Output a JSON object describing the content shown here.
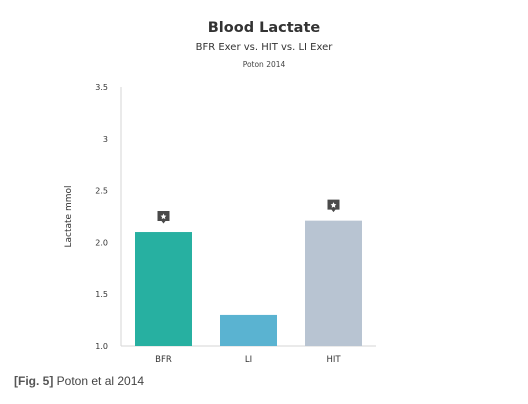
{
  "chart_data": {
    "type": "bar",
    "title": "Blood Lactate",
    "subtitle": "BFR Exer vs. HIT vs. LI Exer",
    "source": "Poton 2014",
    "categories": [
      "BFR",
      "LI",
      "HIT"
    ],
    "values": [
      2.1,
      1.3,
      2.21
    ],
    "ylabel": "Lactate mmol",
    "xlabel": "",
    "ylim": [
      1.0,
      3.5
    ],
    "yticks": [
      "1.0",
      "1.5",
      "2.0",
      "2.5",
      "3",
      "3.5"
    ],
    "significant": [
      true,
      false,
      true
    ],
    "colors": [
      "#27b0a1",
      "#5ab3d1",
      "#b8c4d2"
    ],
    "marker_color": "#4a4a4a",
    "grid": false,
    "legend": "none"
  },
  "caption": {
    "fig_label": "[Fig. 5]",
    "text": "Poton et al 2014"
  }
}
